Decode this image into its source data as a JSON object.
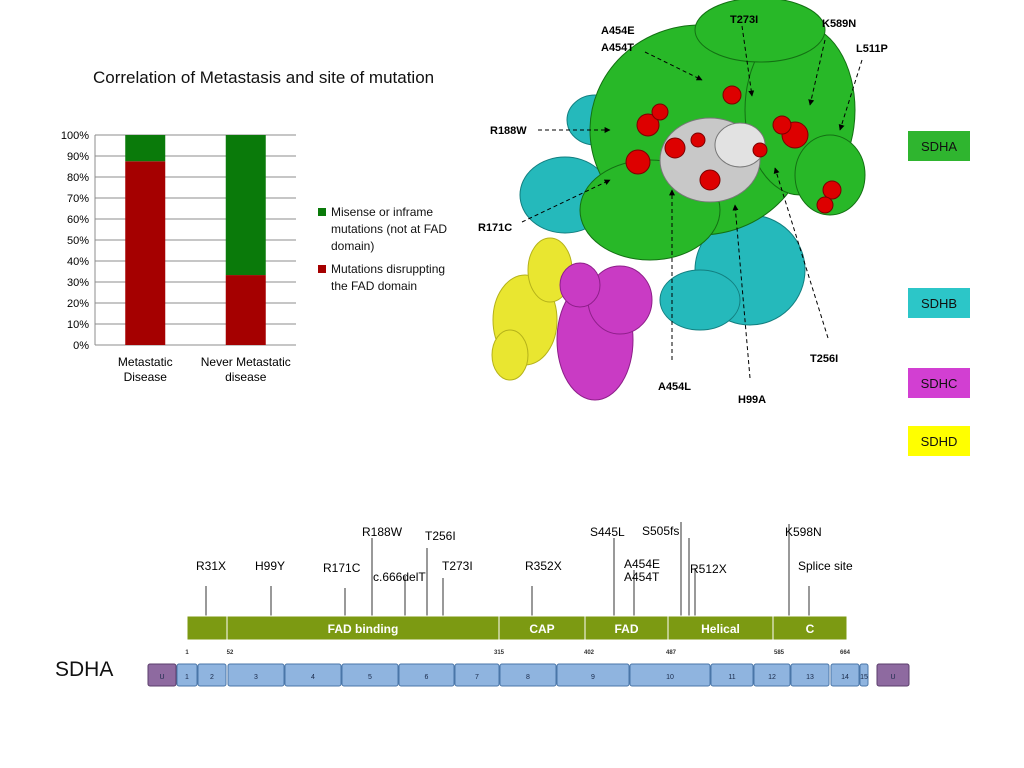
{
  "chart": {
    "title": "Correlation of Metastasis and site of mutation"
  },
  "chart_data": {
    "type": "bar",
    "stacked": true,
    "title": "Correlation of Metastasis and site of mutation",
    "categories": [
      "Metastatic\nDisease",
      "Never Metastatic\ndisease"
    ],
    "category_lines": [
      [
        "Metastatic",
        "Disease"
      ],
      [
        "Never Metastatic",
        "disease"
      ]
    ],
    "series": [
      {
        "name": "Mutations disruppting the FAD domain",
        "color": "#a50000",
        "values": [
          87.5,
          33.3
        ]
      },
      {
        "name": "Misense or inframe mutations (not at FAD domain)",
        "color": "#0a7a0a",
        "values": [
          12.5,
          66.7
        ]
      }
    ],
    "yticks": [
      "0%",
      "10%",
      "20%",
      "30%",
      "40%",
      "50%",
      "60%",
      "70%",
      "80%",
      "90%",
      "100%"
    ],
    "ylim": [
      0,
      100
    ],
    "grid": true,
    "legend_position": "right"
  },
  "legend": [
    {
      "label": "Misense or inframe mutations (not at FAD domain)",
      "color": "#0a7a0a"
    },
    {
      "label": "Mutations disruppting the FAD domain",
      "color": "#a50000"
    }
  ],
  "structure": {
    "labels": [
      "T273I",
      "K589N",
      "A454E",
      "A454T",
      "L511P",
      "R188W",
      "R171C",
      "T256I",
      "A454L",
      "H99A"
    ]
  },
  "subunits": [
    {
      "name": "SDHA",
      "color": "#2fb52f"
    },
    {
      "name": "SDHB",
      "color": "#2cc6c8"
    },
    {
      "name": "SDHC",
      "color": "#d23fd2"
    },
    {
      "name": "SDHD",
      "color": "#ffff00"
    }
  ],
  "gene": {
    "name": "SDHA",
    "mutations": [
      "R31X",
      "H99Y",
      "R171C",
      "R188W",
      "c.666delT",
      "T256I",
      "T273I",
      "R352X",
      "S445L",
      "A454E",
      "A454T",
      "S505fs",
      "R512X",
      "K598N",
      "Splice site"
    ],
    "domains": [
      "",
      "FAD binding",
      "CAP",
      "FAD",
      "Helical",
      "C"
    ],
    "positions": [
      "1",
      "52",
      "315",
      "402",
      "487",
      "585",
      "664"
    ],
    "exons": [
      "U",
      "1",
      "2",
      "3",
      "4",
      "5",
      "6",
      "7",
      "8",
      "9",
      "10",
      "11",
      "12",
      "13",
      "14",
      "15",
      "U"
    ]
  }
}
